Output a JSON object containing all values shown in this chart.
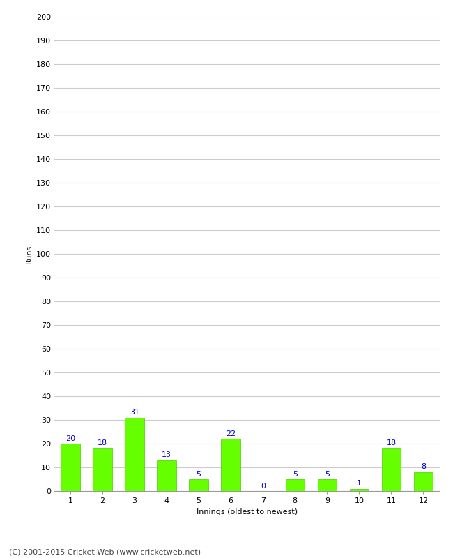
{
  "innings": [
    1,
    2,
    3,
    4,
    5,
    6,
    7,
    8,
    9,
    10,
    11,
    12
  ],
  "runs": [
    20,
    18,
    31,
    13,
    5,
    22,
    0,
    5,
    5,
    1,
    18,
    8
  ],
  "bar_color": "#66ff00",
  "bar_edge_color": "#44cc00",
  "label_color": "#0000cc",
  "xlabel": "Innings (oldest to newest)",
  "ylabel": "Runs",
  "ylim": [
    0,
    200
  ],
  "yticks": [
    0,
    10,
    20,
    30,
    40,
    50,
    60,
    70,
    80,
    90,
    100,
    110,
    120,
    130,
    140,
    150,
    160,
    170,
    180,
    190,
    200
  ],
  "grid_color": "#cccccc",
  "background_color": "#ffffff",
  "footer": "(C) 2001-2015 Cricket Web (www.cricketweb.net)",
  "footer_color": "#444444",
  "label_fontsize": 8,
  "axis_label_fontsize": 8,
  "tick_fontsize": 8
}
